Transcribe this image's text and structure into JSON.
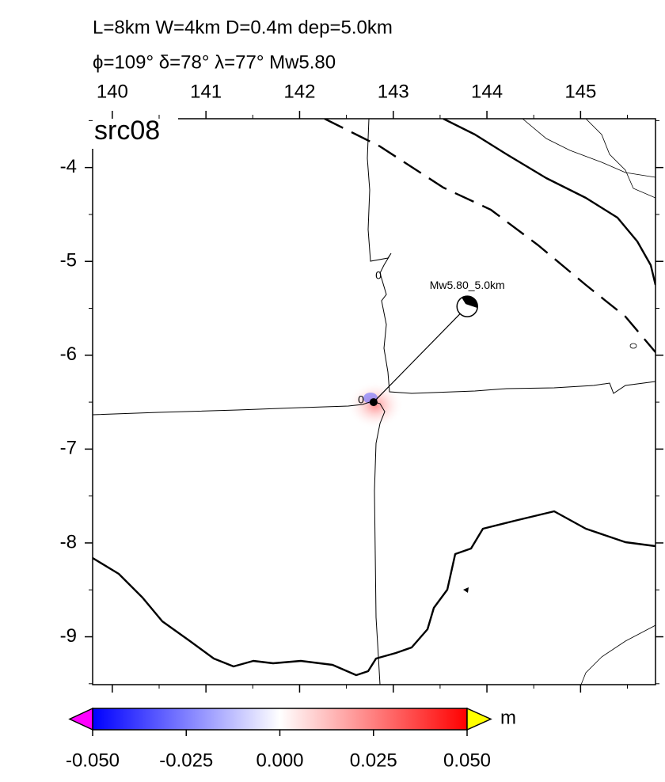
{
  "header": {
    "line1": "L=8km W=4km D=0.4m dep=5.0km",
    "line2": "ϕ=109° δ=78° λ=77° Mw5.80"
  },
  "map": {
    "label": "src08",
    "xlim": [
      139.79,
      145.8
    ],
    "ylim": [
      -9.51,
      -3.48
    ],
    "xticks": [
      140,
      141,
      142,
      143,
      144,
      145
    ],
    "yticks": [
      -4,
      -5,
      -6,
      -7,
      -8,
      -9
    ],
    "source": {
      "lon": 142.79,
      "lat": -6.5
    },
    "beachball": {
      "lon": 143.79,
      "lat": -5.48,
      "label": "Mw5.80_5.0km"
    },
    "contour_labels": [
      "0",
      "0"
    ]
  },
  "colorbar": {
    "range": [
      -0.05,
      0.05
    ],
    "ticks": [
      {
        "value": -0.05,
        "label": "-0.050"
      },
      {
        "value": -0.025,
        "label": "-0.025"
      },
      {
        "value": 0,
        "label": "0.000"
      },
      {
        "value": 0.025,
        "label": "0.025"
      },
      {
        "value": 0.05,
        "label": "0.050"
      }
    ],
    "unit": "m",
    "colors": [
      "#0000ff",
      "#ffffff",
      "#ff0000"
    ],
    "under_color": "#ff00ff",
    "over_color": "#ffff00"
  }
}
